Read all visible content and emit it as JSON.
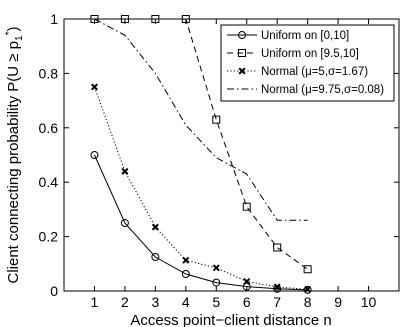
{
  "chart_data": {
    "type": "line",
    "title": "",
    "xlabel": "Access point−client distance n",
    "ylabel": "Client connecting probability P(U ≥ p",
    "ylabel_sup": "1",
    "ylabel_sup2": "*",
    "ylabel_end": ")",
    "xlim": [
      0,
      11
    ],
    "ylim": [
      0,
      1
    ],
    "x_ticks": [
      1,
      2,
      3,
      4,
      5,
      6,
      7,
      8,
      9,
      10
    ],
    "x_tick_labels": [
      "1",
      "2",
      "3",
      "4",
      "5",
      "6",
      "7",
      "8",
      "9",
      "10"
    ],
    "y_ticks": [
      0,
      0.2,
      0.4,
      0.6,
      0.8,
      1
    ],
    "y_tick_labels": [
      "0",
      "0.2",
      "0.4",
      "0.6",
      "0.8",
      "1"
    ],
    "grid": false,
    "legend_position": "top-right",
    "series": [
      {
        "name": "Uniform on [0,10]",
        "line": "solid",
        "marker": "circle",
        "x": [
          1,
          2,
          3,
          4,
          5,
          6,
          7,
          8
        ],
        "y": [
          0.5,
          0.25,
          0.125,
          0.0625,
          0.031,
          0.016,
          0.008,
          0.004
        ]
      },
      {
        "name": "Uniform on [9.5,10]",
        "line": "dashed",
        "marker": "square",
        "x": [
          1,
          2,
          3,
          4,
          5,
          6,
          7,
          8
        ],
        "y": [
          1.0,
          1.0,
          1.0,
          1.0,
          0.63,
          0.31,
          0.16,
          0.08
        ]
      },
      {
        "name": "Normal (μ=5,σ=1.67)",
        "line": "dotted",
        "marker": "x",
        "x": [
          1,
          2,
          3,
          4,
          5,
          6,
          7,
          8
        ],
        "y": [
          0.75,
          0.44,
          0.235,
          0.113,
          0.085,
          0.035,
          0.015,
          0.006
        ]
      },
      {
        "name": "Normal (μ=9.75,σ=0.08)",
        "line": "dashdot",
        "marker": "none",
        "x": [
          1,
          2,
          3,
          4,
          5,
          6,
          7,
          8
        ],
        "y": [
          1.0,
          0.94,
          0.8,
          0.61,
          0.49,
          0.43,
          0.26,
          0.26
        ]
      }
    ]
  }
}
